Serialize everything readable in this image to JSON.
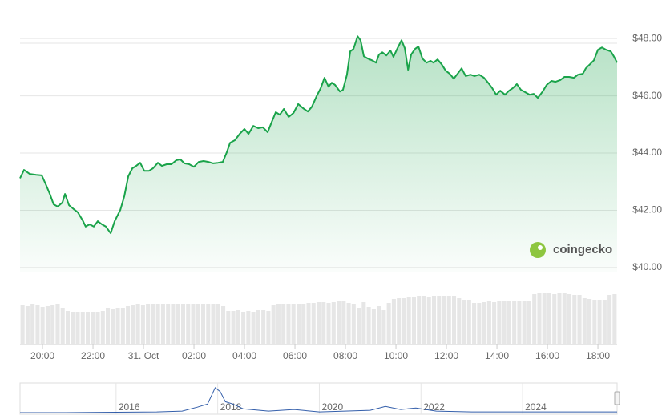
{
  "chart_data": [
    {
      "type": "line",
      "color": "#1aa34a",
      "grid": true,
      "watermark": "coingecko",
      "xlim": [
        19.11,
        42.76
      ],
      "xticks": [
        {
          "value": 20,
          "label": "20:00"
        },
        {
          "value": 22,
          "label": "22:00"
        },
        {
          "value": 24,
          "label": "31. Oct"
        },
        {
          "value": 26,
          "label": "02:00"
        },
        {
          "value": 28,
          "label": "04:00"
        },
        {
          "value": 30,
          "label": "06:00"
        },
        {
          "value": 32,
          "label": "08:00"
        },
        {
          "value": 34,
          "label": "10:00"
        },
        {
          "value": 36,
          "label": "12:00"
        },
        {
          "value": 38,
          "label": "14:00"
        },
        {
          "value": 40,
          "label": "16:00"
        },
        {
          "value": 42,
          "label": "18:00"
        }
      ],
      "ylim": [
        39.83,
        48.2
      ],
      "yticks": [
        {
          "value": 40,
          "label": "$40.00"
        },
        {
          "value": 42,
          "label": "$42.00"
        },
        {
          "value": 44,
          "label": "$44.00"
        },
        {
          "value": 46,
          "label": "$46.00"
        },
        {
          "value": 48,
          "label": "$48.00"
        }
      ],
      "x": [
        19.11,
        19.27,
        19.49,
        19.75,
        19.97,
        20.13,
        20.29,
        20.44,
        20.6,
        20.79,
        20.89,
        21.05,
        21.24,
        21.4,
        21.59,
        21.71,
        21.87,
        22.03,
        22.19,
        22.35,
        22.51,
        22.7,
        22.86,
        23.08,
        23.24,
        23.4,
        23.56,
        23.71,
        23.87,
        24.03,
        24.22,
        24.38,
        24.57,
        24.73,
        24.92,
        25.11,
        25.3,
        25.46,
        25.62,
        25.81,
        26.0,
        26.19,
        26.38,
        26.57,
        26.76,
        26.95,
        27.14,
        27.3,
        27.43,
        27.62,
        27.81,
        28.0,
        28.16,
        28.35,
        28.54,
        28.73,
        28.92,
        29.08,
        29.24,
        29.4,
        29.56,
        29.75,
        29.94,
        30.13,
        30.32,
        30.51,
        30.67,
        30.86,
        31.02,
        31.17,
        31.33,
        31.46,
        31.59,
        31.78,
        31.9,
        32.06,
        32.19,
        32.32,
        32.48,
        32.6,
        32.73,
        32.89,
        33.05,
        33.21,
        33.33,
        33.46,
        33.62,
        33.78,
        33.9,
        34.06,
        34.22,
        34.35,
        34.48,
        34.6,
        34.76,
        34.89,
        35.05,
        35.21,
        35.37,
        35.49,
        35.65,
        35.81,
        35.97,
        36.13,
        36.29,
        36.44,
        36.6,
        36.76,
        36.95,
        37.11,
        37.3,
        37.49,
        37.65,
        37.81,
        37.97,
        38.13,
        38.32,
        38.48,
        38.63,
        38.79,
        38.95,
        39.11,
        39.3,
        39.46,
        39.62,
        39.81,
        39.97,
        40.16,
        40.32,
        40.51,
        40.67,
        40.86,
        41.05,
        41.21,
        41.4,
        41.52,
        41.68,
        41.84,
        42.0,
        42.16,
        42.32,
        42.51,
        42.63,
        42.76
      ],
      "values": [
        43.12,
        43.41,
        43.27,
        43.24,
        43.22,
        42.91,
        42.57,
        42.21,
        42.13,
        42.27,
        42.57,
        42.18,
        42.04,
        41.93,
        41.65,
        41.43,
        41.51,
        41.43,
        41.62,
        41.51,
        41.43,
        41.2,
        41.62,
        42.01,
        42.49,
        43.19,
        43.47,
        43.55,
        43.66,
        43.38,
        43.38,
        43.47,
        43.66,
        43.55,
        43.61,
        43.61,
        43.75,
        43.78,
        43.64,
        43.61,
        43.52,
        43.69,
        43.72,
        43.69,
        43.64,
        43.66,
        43.69,
        44.03,
        44.36,
        44.45,
        44.67,
        44.84,
        44.67,
        44.95,
        44.87,
        44.9,
        44.73,
        45.09,
        45.43,
        45.34,
        45.54,
        45.26,
        45.4,
        45.71,
        45.57,
        45.45,
        45.62,
        45.99,
        46.27,
        46.63,
        46.32,
        46.46,
        46.38,
        46.15,
        46.21,
        46.74,
        47.55,
        47.64,
        48.08,
        47.94,
        47.38,
        47.3,
        47.24,
        47.16,
        47.44,
        47.52,
        47.41,
        47.58,
        47.36,
        47.66,
        47.94,
        47.66,
        46.91,
        47.44,
        47.64,
        47.72,
        47.3,
        47.16,
        47.22,
        47.16,
        47.27,
        47.1,
        46.88,
        46.77,
        46.6,
        46.77,
        46.96,
        46.69,
        46.74,
        46.69,
        46.74,
        46.63,
        46.46,
        46.27,
        46.04,
        46.18,
        46.04,
        46.18,
        46.27,
        46.41,
        46.21,
        46.13,
        46.04,
        46.07,
        45.93,
        46.15,
        46.38,
        46.52,
        46.49,
        46.55,
        46.66,
        46.66,
        46.63,
        46.74,
        46.77,
        46.96,
        47.1,
        47.24,
        47.61,
        47.69,
        47.61,
        47.55,
        47.38,
        47.16
      ]
    },
    {
      "type": "volume",
      "color": "#e6e6e6",
      "values": [
        49,
        48,
        50,
        49,
        47,
        48,
        49,
        50,
        45,
        42,
        40,
        41,
        40,
        41,
        40,
        41,
        42,
        45,
        44,
        46,
        45,
        48,
        49,
        50,
        49,
        50,
        51,
        50,
        50,
        51,
        50,
        51,
        50,
        51,
        50,
        50,
        51,
        50,
        50,
        50,
        48,
        42,
        42,
        43,
        41,
        42,
        41,
        43,
        43,
        42,
        49,
        50,
        50,
        51,
        50,
        51,
        51,
        52,
        52,
        53,
        53,
        52,
        53,
        54,
        54,
        52,
        50,
        46,
        53,
        47,
        44,
        48,
        43,
        52,
        57,
        58,
        58,
        59,
        59,
        60,
        60,
        59,
        60,
        60,
        61,
        60,
        61,
        58,
        56,
        55,
        52,
        52,
        53,
        54,
        53,
        54,
        54,
        54,
        54,
        54,
        54,
        54,
        63,
        64,
        64,
        64,
        63,
        64,
        64,
        63,
        62,
        62,
        58,
        57,
        56,
        56,
        56,
        62,
        63
      ]
    },
    {
      "type": "navigator",
      "color": "#335eaa",
      "xlim": [
        2014.11,
        2025.86
      ],
      "ylim": [
        0,
        36
      ],
      "xticks": [
        2016,
        2018,
        2020,
        2022,
        2024
      ],
      "x": [
        2014.11,
        2015,
        2016,
        2016.8,
        2017.3,
        2017.6,
        2017.8,
        2017.95,
        2018.05,
        2018.15,
        2018.3,
        2018.5,
        2019,
        2019.5,
        2020,
        2021,
        2021.3,
        2021.6,
        2021.9,
        2022.3,
        2023,
        2024,
        2025.86
      ],
      "values": [
        1,
        1,
        1.5,
        2,
        3,
        8,
        12,
        33,
        28,
        15,
        12,
        6,
        3,
        5,
        2,
        4,
        9,
        5,
        7,
        3,
        2,
        2,
        2
      ]
    }
  ]
}
